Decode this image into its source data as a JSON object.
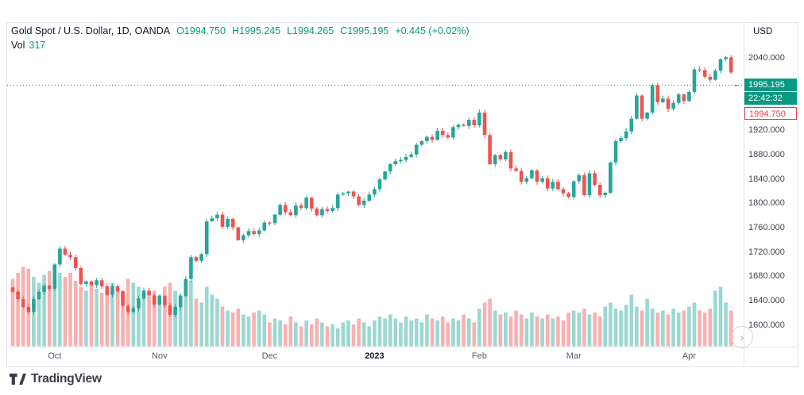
{
  "header": {
    "symbol_title": "Gold Spot / U.S. Dollar, 1D, OANDA",
    "ohlc": {
      "open": "O1994.750",
      "high": "H1995.245",
      "low": "L1994.265",
      "close": "C1995.195",
      "change": "+0.445 (+0.02%)"
    },
    "volume_label": "Vol",
    "volume_value": "317"
  },
  "price_axis": {
    "currency": "USD",
    "badges": {
      "last": "1995.195",
      "countdown": "22:42:32",
      "prev": "1994.750"
    }
  },
  "footer": {
    "brand": "TradingView"
  },
  "colors": {
    "up": "#26a69a",
    "down": "#ef5350",
    "vol_up": "rgba(38,166,154,0.45)",
    "vol_down": "rgba(239,83,80,0.45)",
    "accent": "#089981",
    "border": "#e0e3eb"
  },
  "chart_data": {
    "type": "candlestick",
    "title": "Gold Spot / U.S. Dollar, 1D, OANDA",
    "interval": "1D",
    "exchange": "OANDA",
    "price_currency": "USD",
    "ylim": [
      1580,
      2060
    ],
    "last_ohlc": {
      "o": 1994.75,
      "h": 1995.245,
      "l": 1994.265,
      "c": 1995.195
    },
    "last_volume": 317,
    "first_open": 1662,
    "price_ticks": [
      {
        "text": "2040.000",
        "price": 2040
      },
      {
        "text": "1920.000",
        "price": 1920
      },
      {
        "text": "1880.000",
        "price": 1880
      },
      {
        "text": "1840.000",
        "price": 1840
      },
      {
        "text": "1800.000",
        "price": 1800
      },
      {
        "text": "1760.000",
        "price": 1760
      },
      {
        "text": "1720.000",
        "price": 1720
      },
      {
        "text": "1680.000",
        "price": 1680
      },
      {
        "text": "1640.000",
        "price": 1640
      },
      {
        "text": "1600.000",
        "price": 1600
      }
    ],
    "months": [
      {
        "text": "Oct",
        "index": 8
      },
      {
        "text": "Nov",
        "index": 28
      },
      {
        "text": "Dec",
        "index": 49
      },
      {
        "text": "2023",
        "index": 69,
        "emphasis": true
      },
      {
        "text": "Feb",
        "index": 89
      },
      {
        "text": "Mar",
        "index": 107
      },
      {
        "text": "Apr",
        "index": 129
      }
    ],
    "closes": [
      1655,
      1643,
      1630,
      1622,
      1643,
      1655,
      1665,
      1660,
      1700,
      1726,
      1716,
      1712,
      1694,
      1668,
      1672,
      1666,
      1674,
      1664,
      1650,
      1664,
      1656,
      1632,
      1622,
      1628,
      1644,
      1657,
      1649,
      1634,
      1648,
      1633,
      1617,
      1630,
      1648,
      1676,
      1712,
      1706,
      1717,
      1771,
      1776,
      1782,
      1762,
      1775,
      1761,
      1740,
      1748,
      1755,
      1750,
      1756,
      1769,
      1768,
      1782,
      1798,
      1786,
      1781,
      1797,
      1793,
      1810,
      1792,
      1781,
      1791,
      1788,
      1793,
      1815,
      1817,
      1820,
      1812,
      1798,
      1805,
      1815,
      1824,
      1840,
      1853,
      1865,
      1870,
      1872,
      1877,
      1881,
      1897,
      1903,
      1910,
      1905,
      1920,
      1913,
      1909,
      1926,
      1930,
      1928,
      1938,
      1929,
      1950,
      1913,
      1865,
      1880,
      1873,
      1885,
      1858,
      1854,
      1836,
      1842,
      1855,
      1836,
      1842,
      1825,
      1836,
      1824,
      1817,
      1811,
      1837,
      1847,
      1814,
      1850,
      1831,
      1814,
      1818,
      1868,
      1903,
      1908,
      1919,
      1940,
      1978,
      1940,
      1950,
      1995,
      1967,
      1973,
      1956,
      1966,
      1980,
      1969,
      1984,
      2021,
      2020,
      2009,
      2004,
      2019,
      2038,
      2041,
      2016,
      1995.195
    ],
    "volumes_k": [
      170,
      185,
      200,
      195,
      175,
      160,
      180,
      190,
      200,
      185,
      175,
      185,
      165,
      150,
      140,
      155,
      145,
      135,
      150,
      160,
      140,
      130,
      170,
      160,
      150,
      135,
      125,
      140,
      130,
      150,
      160,
      140,
      130,
      150,
      165,
      120,
      110,
      150,
      130,
      120,
      100,
      90,
      85,
      95,
      80,
      75,
      85,
      90,
      80,
      60,
      70,
      65,
      55,
      75,
      60,
      50,
      65,
      55,
      70,
      60,
      50,
      55,
      45,
      60,
      65,
      55,
      70,
      60,
      50,
      65,
      75,
      70,
      80,
      70,
      60,
      75,
      65,
      70,
      60,
      80,
      70,
      65,
      75,
      60,
      70,
      65,
      80,
      70,
      60,
      95,
      110,
      120,
      90,
      80,
      85,
      75,
      90,
      80,
      70,
      85,
      75,
      70,
      80,
      70,
      75,
      65,
      85,
      90,
      85,
      95,
      80,
      85,
      75,
      100,
      110,
      95,
      90,
      105,
      130,
      100,
      90,
      120,
      95,
      85,
      90,
      80,
      95,
      85,
      90,
      100,
      110,
      90,
      85,
      95,
      140,
      150,
      110,
      90,
      0.3
    ]
  }
}
